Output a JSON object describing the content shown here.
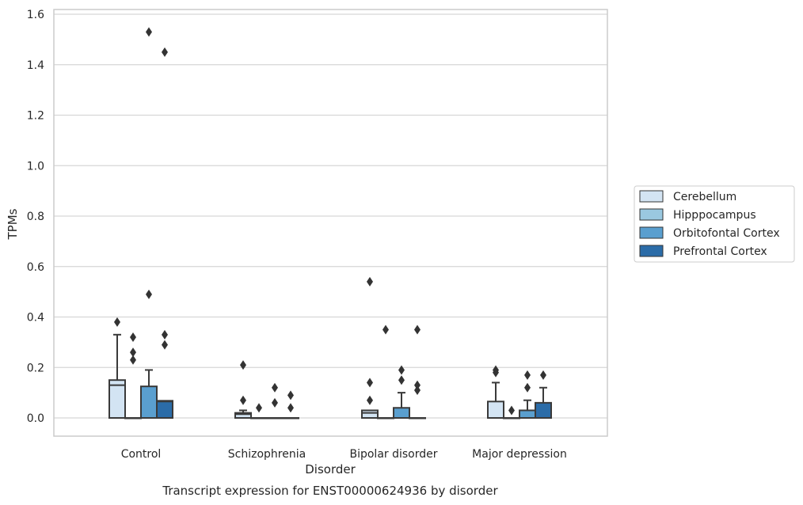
{
  "chart_data": {
    "type": "boxplot",
    "xlabel": "Disorder",
    "ylabel": "TPMs",
    "caption": "Transcript expression for ENST00000624936 by disorder",
    "ylim": [
      -0.07,
      1.61
    ],
    "yticks": [
      "0.0",
      "0.2",
      "0.4",
      "0.6",
      "0.8",
      "1.0",
      "1.2",
      "1.4",
      "1.6"
    ],
    "ytick_values": [
      0,
      0.2,
      0.4,
      0.6,
      0.8,
      1.0,
      1.2,
      1.4,
      1.6
    ],
    "categories": [
      "Control",
      "Schizophrenia",
      "Bipolar disorder",
      "Major depression"
    ],
    "grid": "horizontal",
    "legend_position": "right",
    "series": [
      {
        "name": "Cerebellum",
        "color": "#d3e4f3",
        "boxes": [
          {
            "q1": 0,
            "median": 0.13,
            "q3": 0.15,
            "whisker_low": 0,
            "whisker_high": 0.33,
            "outliers": [
              0.38
            ]
          },
          {
            "q1": 0,
            "median": 0.015,
            "q3": 0.02,
            "whisker_low": 0,
            "whisker_high": 0.03,
            "outliers": [
              0.21,
              0.07
            ]
          },
          {
            "q1": 0,
            "median": 0.02,
            "q3": 0.03,
            "whisker_low": 0,
            "whisker_high": 0.03,
            "outliers": [
              0.54,
              0.14,
              0.07
            ]
          },
          {
            "q1": 0,
            "median": 0.0,
            "q3": 0.065,
            "whisker_low": 0,
            "whisker_high": 0.14,
            "outliers": [
              0.19,
              0.18
            ]
          }
        ]
      },
      {
        "name": "Hipppocampus",
        "color": "#9ac8e0",
        "boxes": [
          {
            "q1": 0,
            "median": 0,
            "q3": 0,
            "whisker_low": 0,
            "whisker_high": 0,
            "outliers": [
              0.32,
              0.26,
              0.23
            ]
          },
          {
            "q1": 0,
            "median": 0,
            "q3": 0,
            "whisker_low": 0,
            "whisker_high": 0,
            "outliers": [
              0.04
            ]
          },
          {
            "q1": 0,
            "median": 0,
            "q3": 0,
            "whisker_low": 0,
            "whisker_high": 0,
            "outliers": [
              0.35
            ]
          },
          {
            "q1": 0,
            "median": 0,
            "q3": 0,
            "whisker_low": 0,
            "whisker_high": 0,
            "outliers": [
              0.03
            ]
          }
        ]
      },
      {
        "name": "Orbitofontal Cortex",
        "color": "#5a9fcf",
        "boxes": [
          {
            "q1": 0,
            "median": 0,
            "q3": 0.125,
            "whisker_low": 0,
            "whisker_high": 0.19,
            "outliers": [
              1.53,
              0.49
            ]
          },
          {
            "q1": 0,
            "median": 0,
            "q3": 0,
            "whisker_low": 0,
            "whisker_high": 0,
            "outliers": [
              0.12,
              0.06
            ]
          },
          {
            "q1": 0,
            "median": 0,
            "q3": 0.04,
            "whisker_low": 0,
            "whisker_high": 0.1,
            "outliers": [
              0.19,
              0.15
            ]
          },
          {
            "q1": 0,
            "median": 0,
            "q3": 0.03,
            "whisker_low": 0,
            "whisker_high": 0.07,
            "outliers": [
              0.17,
              0.12
            ]
          }
        ]
      },
      {
        "name": "Prefrontal Cortex",
        "color": "#2b6ca8",
        "boxes": [
          {
            "q1": 0,
            "median": 0.065,
            "q3": 0.068,
            "whisker_low": 0,
            "whisker_high": 0.068,
            "outliers": [
              1.45,
              0.33,
              0.29
            ]
          },
          {
            "q1": 0,
            "median": 0,
            "q3": 0,
            "whisker_low": 0,
            "whisker_high": 0,
            "outliers": [
              0.09,
              0.04
            ]
          },
          {
            "q1": 0,
            "median": 0,
            "q3": 0,
            "whisker_low": 0,
            "whisker_high": 0,
            "outliers": [
              0.35,
              0.13,
              0.11
            ]
          },
          {
            "q1": 0,
            "median": 0,
            "q3": 0.06,
            "whisker_low": 0,
            "whisker_high": 0.12,
            "outliers": [
              0.17
            ]
          }
        ]
      }
    ]
  }
}
